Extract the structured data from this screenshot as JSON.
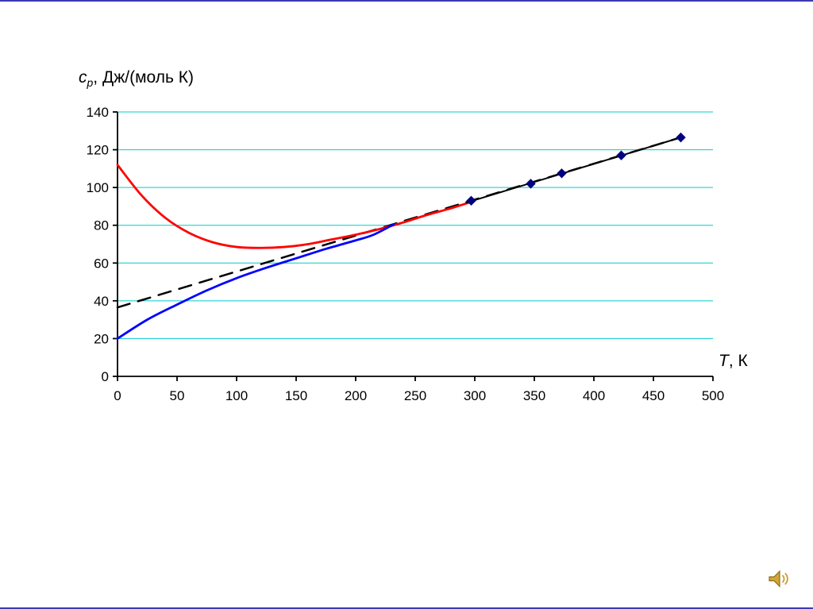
{
  "slide": {
    "background": "#FFFFFF",
    "border_color": "#3A3AB4"
  },
  "icons": {
    "audio": "speaker-with-sound-waves"
  },
  "chart_data": {
    "type": "line",
    "title": "",
    "ylabel": "cp, Дж/(моль К)",
    "ylabel_parts": {
      "var": "c",
      "sub": "p",
      "rest": ", Дж/(моль К)"
    },
    "xlabel": "T, К",
    "xlabel_parts": {
      "var": "T",
      "rest": ", К"
    },
    "xlim": [
      0,
      500
    ],
    "ylim": [
      0,
      140
    ],
    "xticks": [
      0,
      50,
      100,
      150,
      200,
      250,
      300,
      350,
      400,
      450,
      500
    ],
    "yticks": [
      0,
      20,
      40,
      60,
      80,
      100,
      120,
      140
    ],
    "grid": true,
    "grid_color": "#00CCCC",
    "axis_color": "#000000",
    "legend": "none",
    "series": [
      {
        "name": "extrapolation-dashed-line",
        "kind": "line",
        "style": "dashed",
        "color": "#000000",
        "width": 2.5,
        "x": [
          0,
          473
        ],
        "y": [
          36.5,
          126.5
        ]
      },
      {
        "name": "cp-red-curve",
        "kind": "curve",
        "style": "solid",
        "color": "#FF0000",
        "width": 2.8,
        "x": [
          0,
          20,
          40,
          60,
          80,
          100,
          120,
          140,
          160,
          180,
          200,
          220,
          240,
          260,
          280,
          300
        ],
        "y": [
          112,
          96,
          84,
          76,
          71,
          68.5,
          68,
          68.5,
          70,
          72.5,
          75,
          78,
          81.5,
          85.5,
          89,
          93
        ]
      },
      {
        "name": "cp-blue-curve",
        "kind": "curve",
        "style": "solid",
        "color": "#0000FF",
        "width": 2.8,
        "x": [
          0,
          25,
          50,
          75,
          100,
          125,
          150,
          175,
          200,
          215,
          232
        ],
        "y": [
          20,
          30,
          38,
          45.5,
          52,
          57.5,
          62.5,
          67.5,
          72,
          75,
          80.5
        ]
      },
      {
        "name": "experimental-fit-line",
        "kind": "line",
        "style": "solid",
        "color": "#000000",
        "width": 2,
        "x": [
          293,
          473
        ],
        "y": [
          92,
          126.5
        ]
      },
      {
        "name": "experimental-points",
        "kind": "scatter",
        "marker": "diamond",
        "color": "#000080",
        "size": 5.5,
        "x": [
          297,
          347,
          373,
          423,
          473
        ],
        "y": [
          93,
          102,
          107.5,
          117,
          126.5
        ]
      }
    ]
  }
}
